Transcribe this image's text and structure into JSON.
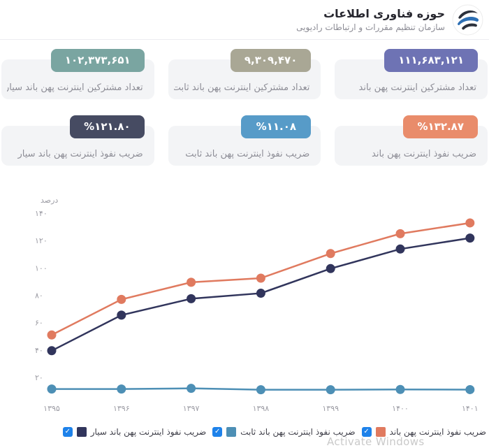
{
  "header": {
    "title": "حوزه فناوری اطلاعات",
    "subtitle": "سازمان تنظیم مقررات و ارتباطات رادیویی"
  },
  "cards": {
    "row1": [
      {
        "value": "۱۱۱,۶۸۳,۱۲۱",
        "label": "تعداد مشترکین اینترنت پهن باند",
        "color": "#6e73b4"
      },
      {
        "value": "۹,۳۰۹,۴۷۰",
        "label": "تعداد مشترکین اینترنت پهن باند ثابت",
        "color": "#a9a795"
      },
      {
        "value": "۱۰۲,۳۷۳,۶۵۱",
        "label": "تعداد مشترکین اینترنت پهن باند سیار",
        "color": "#7aa5a1"
      }
    ],
    "row2": [
      {
        "value": "%۱۳۲.۸۷",
        "label": "ضریب نفوذ اینترنت پهن باند",
        "color": "#e98c6b"
      },
      {
        "value": "%۱۱.۰۸",
        "label": "ضریب نفوذ اینترنت پهن باند ثابت",
        "color": "#579bc8"
      },
      {
        "value": "%۱۲۱.۸۰",
        "label": "ضریب نفوذ اینترنت پهن باند سیار",
        "color": "#464b62"
      }
    ]
  },
  "chart_data": {
    "type": "line",
    "title": "",
    "ylabel": "درصد",
    "xlabel": "",
    "grid": false,
    "legend_position": "bottom",
    "ylim": [
      0,
      150
    ],
    "yticks": [
      {
        "value": 140,
        "label": "۱۴۰"
      },
      {
        "value": 120,
        "label": "۱۲۰"
      },
      {
        "value": 100,
        "label": "۱۰۰"
      },
      {
        "value": 80,
        "label": "۸۰"
      },
      {
        "value": 60,
        "label": "۶۰"
      },
      {
        "value": 40,
        "label": "۴۰"
      },
      {
        "value": 20,
        "label": "۲۰"
      }
    ],
    "x_values": [
      1395,
      1396,
      1397,
      1398,
      1399,
      1400,
      1401
    ],
    "x_labels": [
      "۱۳۹۵",
      "۱۳۹۶",
      "۱۳۹۷",
      "۱۳۹۸",
      "۱۳۹۹",
      "۱۴۰۰",
      "۱۴۰۱"
    ],
    "series": [
      {
        "name": "ضریب نفوذ اینترنت پهن باند",
        "color": "#e07a5f",
        "checked": true,
        "values": [
          51,
          77,
          89.5,
          92.5,
          110.5,
          125,
          132.87
        ]
      },
      {
        "name": "ضریب نفوذ اینترنت پهن باند ثابت",
        "color": "#4d8fb5",
        "checked": true,
        "values": [
          11.5,
          11.5,
          12,
          11,
          11,
          11.2,
          11.08
        ]
      },
      {
        "name": "ضریب نفوذ اینترنت پهن باند سیار",
        "color": "#31355c",
        "checked": true,
        "values": [
          39.5,
          65.5,
          77.5,
          81.5,
          99.5,
          113.8,
          121.8
        ]
      }
    ]
  },
  "watermark": {
    "text": "Activate Windows"
  }
}
